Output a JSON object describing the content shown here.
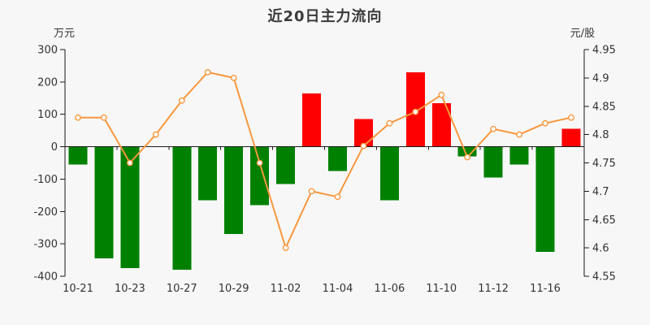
{
  "title": "近20日主力流向",
  "axes": {
    "left_unit": "万元",
    "right_unit": "元/股"
  },
  "colors": {
    "background": "#f7f7f7",
    "positive_bar": "#ff0000",
    "negative_bar": "#008000",
    "price_line": "#f8973d",
    "marker_fill": "#ffffff",
    "axis_line": "#1a1a1a",
    "text": "#333333",
    "title_text": "#3a3a3a"
  },
  "chart_data": {
    "type": "bar+line",
    "title": "近20日主力流向",
    "grid": false,
    "legend": "none",
    "categories": [
      "10-21",
      "",
      "10-23",
      "",
      "10-27",
      "",
      "10-29",
      "",
      "11-02",
      "",
      "11-04",
      "",
      "11-06",
      "",
      "11-10",
      "",
      "11-12",
      "",
      "11-16",
      ""
    ],
    "x_axis_labels": [
      "10-21",
      "10-23",
      "10-27",
      "10-29",
      "11-02",
      "11-04",
      "11-06",
      "11-10",
      "11-12",
      "11-16"
    ],
    "series": [
      {
        "name": "主力流向",
        "unit": "万元",
        "type": "bar",
        "axis": "left",
        "values": [
          -55,
          -345,
          -375,
          0,
          -380,
          -165,
          -270,
          -180,
          -115,
          165,
          -75,
          85,
          -165,
          230,
          135,
          -30,
          -95,
          -55,
          -325,
          55
        ]
      },
      {
        "name": "元/股",
        "unit": "元/股",
        "type": "line",
        "axis": "right",
        "values": [
          4.83,
          4.83,
          4.75,
          4.8,
          4.86,
          4.91,
          4.9,
          4.75,
          4.6,
          4.7,
          4.69,
          4.78,
          4.82,
          4.84,
          4.87,
          4.76,
          4.81,
          4.8,
          4.82,
          4.83
        ]
      }
    ],
    "left_axis": {
      "label": "万元",
      "min": -400,
      "max": 300,
      "ticks": [
        "300",
        "200",
        "100",
        "0",
        "-100",
        "-200",
        "-300",
        "-400"
      ]
    },
    "right_axis": {
      "label": "元/股",
      "min": 4.55,
      "max": 4.95,
      "ticks": [
        "4.95",
        "4.9",
        "4.85",
        "4.8",
        "4.75",
        "4.7",
        "4.65",
        "4.6",
        "4.55"
      ]
    }
  }
}
